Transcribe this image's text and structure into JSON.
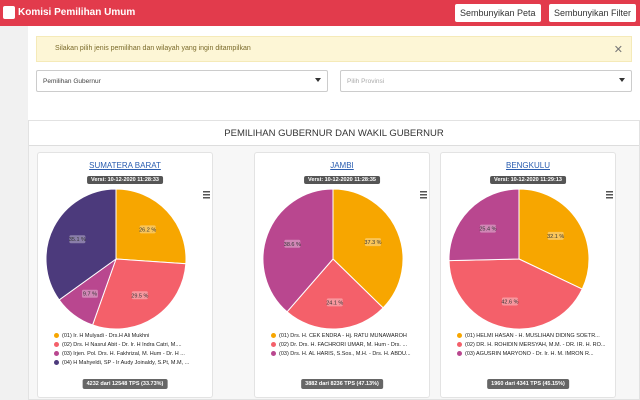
{
  "header": {
    "title": "Komisi Pemilihan Umum",
    "buttons": [
      "Sembunyikan Peta",
      "Sembunyikan Filter"
    ]
  },
  "alert": {
    "text": "Silakan pilih jenis pemilihan dan wilayah yang ingin ditampilkan"
  },
  "filters": [
    "Pemilihan Gubernur",
    "Pilih Provinsi"
  ],
  "section": {
    "title": "PEMILIHAN GUBERNUR DAN WAKIL GUBERNUR"
  },
  "cards": [
    {
      "title": "SUMATERA BARAT",
      "version": "Versi: 10-12-2020 11:28:33",
      "footer": "4232 dari 12548 TPS (33.73%)",
      "chart": {
        "type": "pie",
        "labels": [
          "(01) Ir. H Mulyadi - Drs.H Ali Mukhni",
          "(02) Drs. H Nasrul Abit - Dr. Ir. H Indra Catri, M....",
          "(03) Irjen. Pol. Drs. H. Fakhrizal, M. Hum - Dr. H ...",
          "(04) H Mahyeldi, SP - Ir Audy Joinaldy, S.Pt, M.M, ..."
        ],
        "values": [
          26.2,
          29.5,
          9.7,
          35.1
        ],
        "value_labels": [
          "26.2 %",
          "29.5 %",
          "9.7 %",
          "35.1 %"
        ],
        "colors": [
          "#f7a600",
          "#f4606a",
          "#b9478f",
          "#4c3a7c"
        ]
      }
    },
    {
      "title": "JAMBI",
      "version": "Versi: 10-12-2020 11:28:35",
      "footer": "3882 dari 8236 TPS (47.13%)",
      "chart": {
        "type": "pie",
        "labels": [
          "(01) Drs. H. CEK ENDRA - Hj. RATU MUNAWAROH",
          "(02) Dr. Drs. H. FACHRORI UMAR, M. Hum - Drs. ...",
          "(03) Drs. H. AL HARIS, S.Sos., M.H. - Drs. H. ABDU..."
        ],
        "values": [
          37.3,
          24.1,
          38.6
        ],
        "value_labels": [
          "37.3 %",
          "24.1 %",
          "38.6 %"
        ],
        "colors": [
          "#f7a600",
          "#f4606a",
          "#b9478f"
        ]
      }
    },
    {
      "title": "BENGKULU",
      "version": "Versi: 10-12-2020 11:29:13",
      "footer": "1960 dari 4341 TPS (45.15%)",
      "chart": {
        "type": "pie",
        "labels": [
          "(01) HELMI HASAN - H. MUSLIHAN DIDING SOETR...",
          "(02) DR. H. ROHIDIN MERSYAH, M.M. - DR. IR. H. RO...",
          "(03) AGUSRIN MARYONO - Dr. Ir. H. M. IMRON R..."
        ],
        "values": [
          32.1,
          42.6,
          25.4
        ],
        "value_labels": [
          "32.1 %",
          "42.6 %",
          "25.4 %"
        ],
        "colors": [
          "#f7a600",
          "#f4606a",
          "#b9478f"
        ]
      }
    }
  ]
}
